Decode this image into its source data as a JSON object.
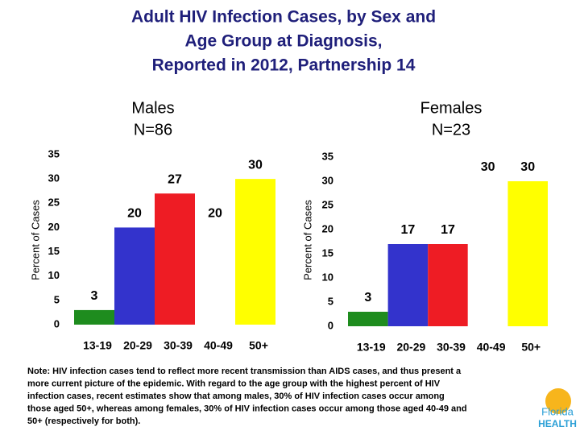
{
  "title": [
    "Adult HIV Infection Cases, by Sex and",
    "Age Group at Diagnosis,",
    "Reported in 2012, Partnership 14"
  ],
  "chart_data": [
    {
      "type": "bar",
      "title": [
        "Males",
        "N=86"
      ],
      "ylabel": "Percent of Cases",
      "categories": [
        "13-19",
        "20-29",
        "30-39",
        "40-49",
        "50+"
      ],
      "values": [
        3,
        20,
        27,
        20,
        30
      ],
      "colors": [
        "#1e8c1e",
        "#3333cc",
        "#ee1c24",
        "#ffffff",
        "#ffff00"
      ],
      "ylim": [
        0,
        35
      ],
      "yticks": [
        0,
        5,
        10,
        15,
        20,
        25,
        30,
        35
      ]
    },
    {
      "type": "bar",
      "title": [
        "Females",
        "N=23"
      ],
      "ylabel": "Percent of Cases",
      "categories": [
        "13-19",
        "20-29",
        "30-39",
        "40-49",
        "50+"
      ],
      "values": [
        3,
        17,
        17,
        30,
        30
      ],
      "colors": [
        "#1e8c1e",
        "#3333cc",
        "#ee1c24",
        "#ffffff",
        "#ffff00"
      ],
      "ylim": [
        0,
        35
      ],
      "yticks": [
        0,
        5,
        10,
        15,
        20,
        25,
        30,
        35
      ]
    }
  ],
  "note": [
    "Note: HIV infection cases tend to reflect more recent transmission than AIDS cases, and thus present a",
    "more current picture of the epidemic. With regard to the age group with the highest percent of HIV",
    "infection cases, recent estimates show that among males, 30% of HIV infection cases occur among",
    "those aged 50+, whereas among females, 30% of HIV infection cases occur among those aged 40-49 and",
    "50+ (respectively for both)."
  ],
  "logo": [
    "Florida",
    "HEALTH"
  ]
}
